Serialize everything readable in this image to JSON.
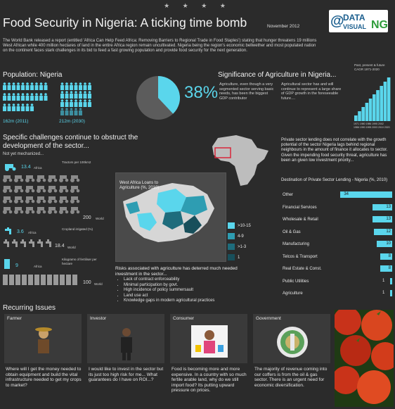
{
  "stars": "★ ★ ★ ★",
  "title": "Food Security in Nigeria: A ticking time bomb",
  "date": "November 2012",
  "logo": {
    "prefix": "@",
    "word1": "DATA",
    "word2": "VISUAL",
    "suffix": "NG"
  },
  "intro": "The World Bank released a report (entitled 'Africa Can Help Feed Africa: Removing Barriers to Regional Trade in Food Staples') stating that hunger threatens 19 millions West African while 400 million hectares of land in the entire Africa region remain uncultivated. Nigeria being the region's economic bellwether and most populated nation on the continent faces stark challenges in its bid to feed a fast growing population and provide food security for the next generation.",
  "population": {
    "heading": "Population: Nigeria",
    "label_2011": "162m (2011)",
    "label_2030": "212m (2030)",
    "colors": {
      "highlight": "#5ad6ec",
      "base": "#3d8fa0"
    }
  },
  "significance": {
    "heading": "Significance of Agriculture in Nigeria...",
    "pie_percent": 38,
    "pie_label": "38%",
    "text1": "Agriculture, even though a very segmented sector serving basic needs, has been the biggest GDP contributor",
    "text2": "Agricultural sector has and will continue to represent a large share of GDP growth in the foreseeable future....",
    "cagr_title": "Past, present & future CAGR 1971-2020",
    "cagr_labels_top": "1971  1980  1986  1995  2002",
    "cagr_labels_bottom": "1986  1990  1995  2003  2010  2020"
  },
  "challenges": {
    "heading": "Specific challenges continue to obstruct the development of the sector...",
    "sub": "Not yet mechanized...",
    "tractors_caption": "Tractors per 100km2",
    "tractors_africa": "13.4",
    "tractors_world": "200",
    "irrigated_caption": "Cropland irrigated (%)",
    "irrigated_africa": "3.6",
    "irrigated_world": "18.4",
    "fertiliser_caption": "Kilograms of fertiliser per hectare",
    "fertiliser_africa": "9",
    "fertiliser_world": "100",
    "africa_label": "Africa",
    "world_label": "World"
  },
  "map": {
    "title": "West Africa Loans to Agriculture (%, 2010)",
    "legend": [
      {
        "label": ">10-15",
        "color": "#5ad6ec"
      },
      {
        "label": "4-9",
        "color": "#2e9db2"
      },
      {
        "label": ">1-3",
        "color": "#1e6c7c"
      },
      {
        "label": "1",
        "color": "#184f5b"
      }
    ]
  },
  "risks": {
    "heading": "Risks associated with agriculture has deterred much needed investment in the sector...",
    "items": [
      "Lack of contract enforceability",
      "Minimal participation by govt.",
      "High incidence of policy summersault",
      "Land use act",
      "Knowledge gaps in modern agricultural practices"
    ]
  },
  "lending": {
    "intro": "Private sector lending does not correlate with the growth potential of the sector Nigeria lags behind regional neighbours in the amount of finance it allocates to sector. Given the impending food security threat, agriculture has been an given low investment priority...",
    "chart_title": "Destination of Private Sector Lending - Nigeria (%, 2010)"
  },
  "chart_data": {
    "type": "bar",
    "title": "Destination of Private Sector Lending - Nigeria (%, 2010)",
    "categories": [
      "Other",
      "Financial Services",
      "Wholesale & Retail",
      "Oil & Gas",
      "Manufacturing",
      "Telcos & Transport",
      "Real Estate & Const.",
      "Public Utilities",
      "Agriculture"
    ],
    "values": [
      34,
      13,
      13,
      12,
      10,
      8,
      8,
      1,
      1
    ],
    "orientation": "horizontal",
    "color": "#5ad6ec"
  },
  "issues": {
    "heading": "Recurring Issues",
    "cards": [
      {
        "title": "Farmer",
        "text": "Where will I get the money needed to obtain equipment and build the vital infrastructure needed to get my crops to market?"
      },
      {
        "title": "Investor",
        "text": "I would like to invest in the sector but its just too high risk for me... What guarantees do I have on ROI...?"
      },
      {
        "title": "Consumer",
        "text": "Food is becoming more and more expensive. In a country with so much fertile arable land, why do we still import food? Its putting upward pressure on prices."
      },
      {
        "title": "Government",
        "text": "The majority of revenue coming into our coffers is from the oil & gas sector. There is an urgent need for economic diversification."
      }
    ]
  }
}
